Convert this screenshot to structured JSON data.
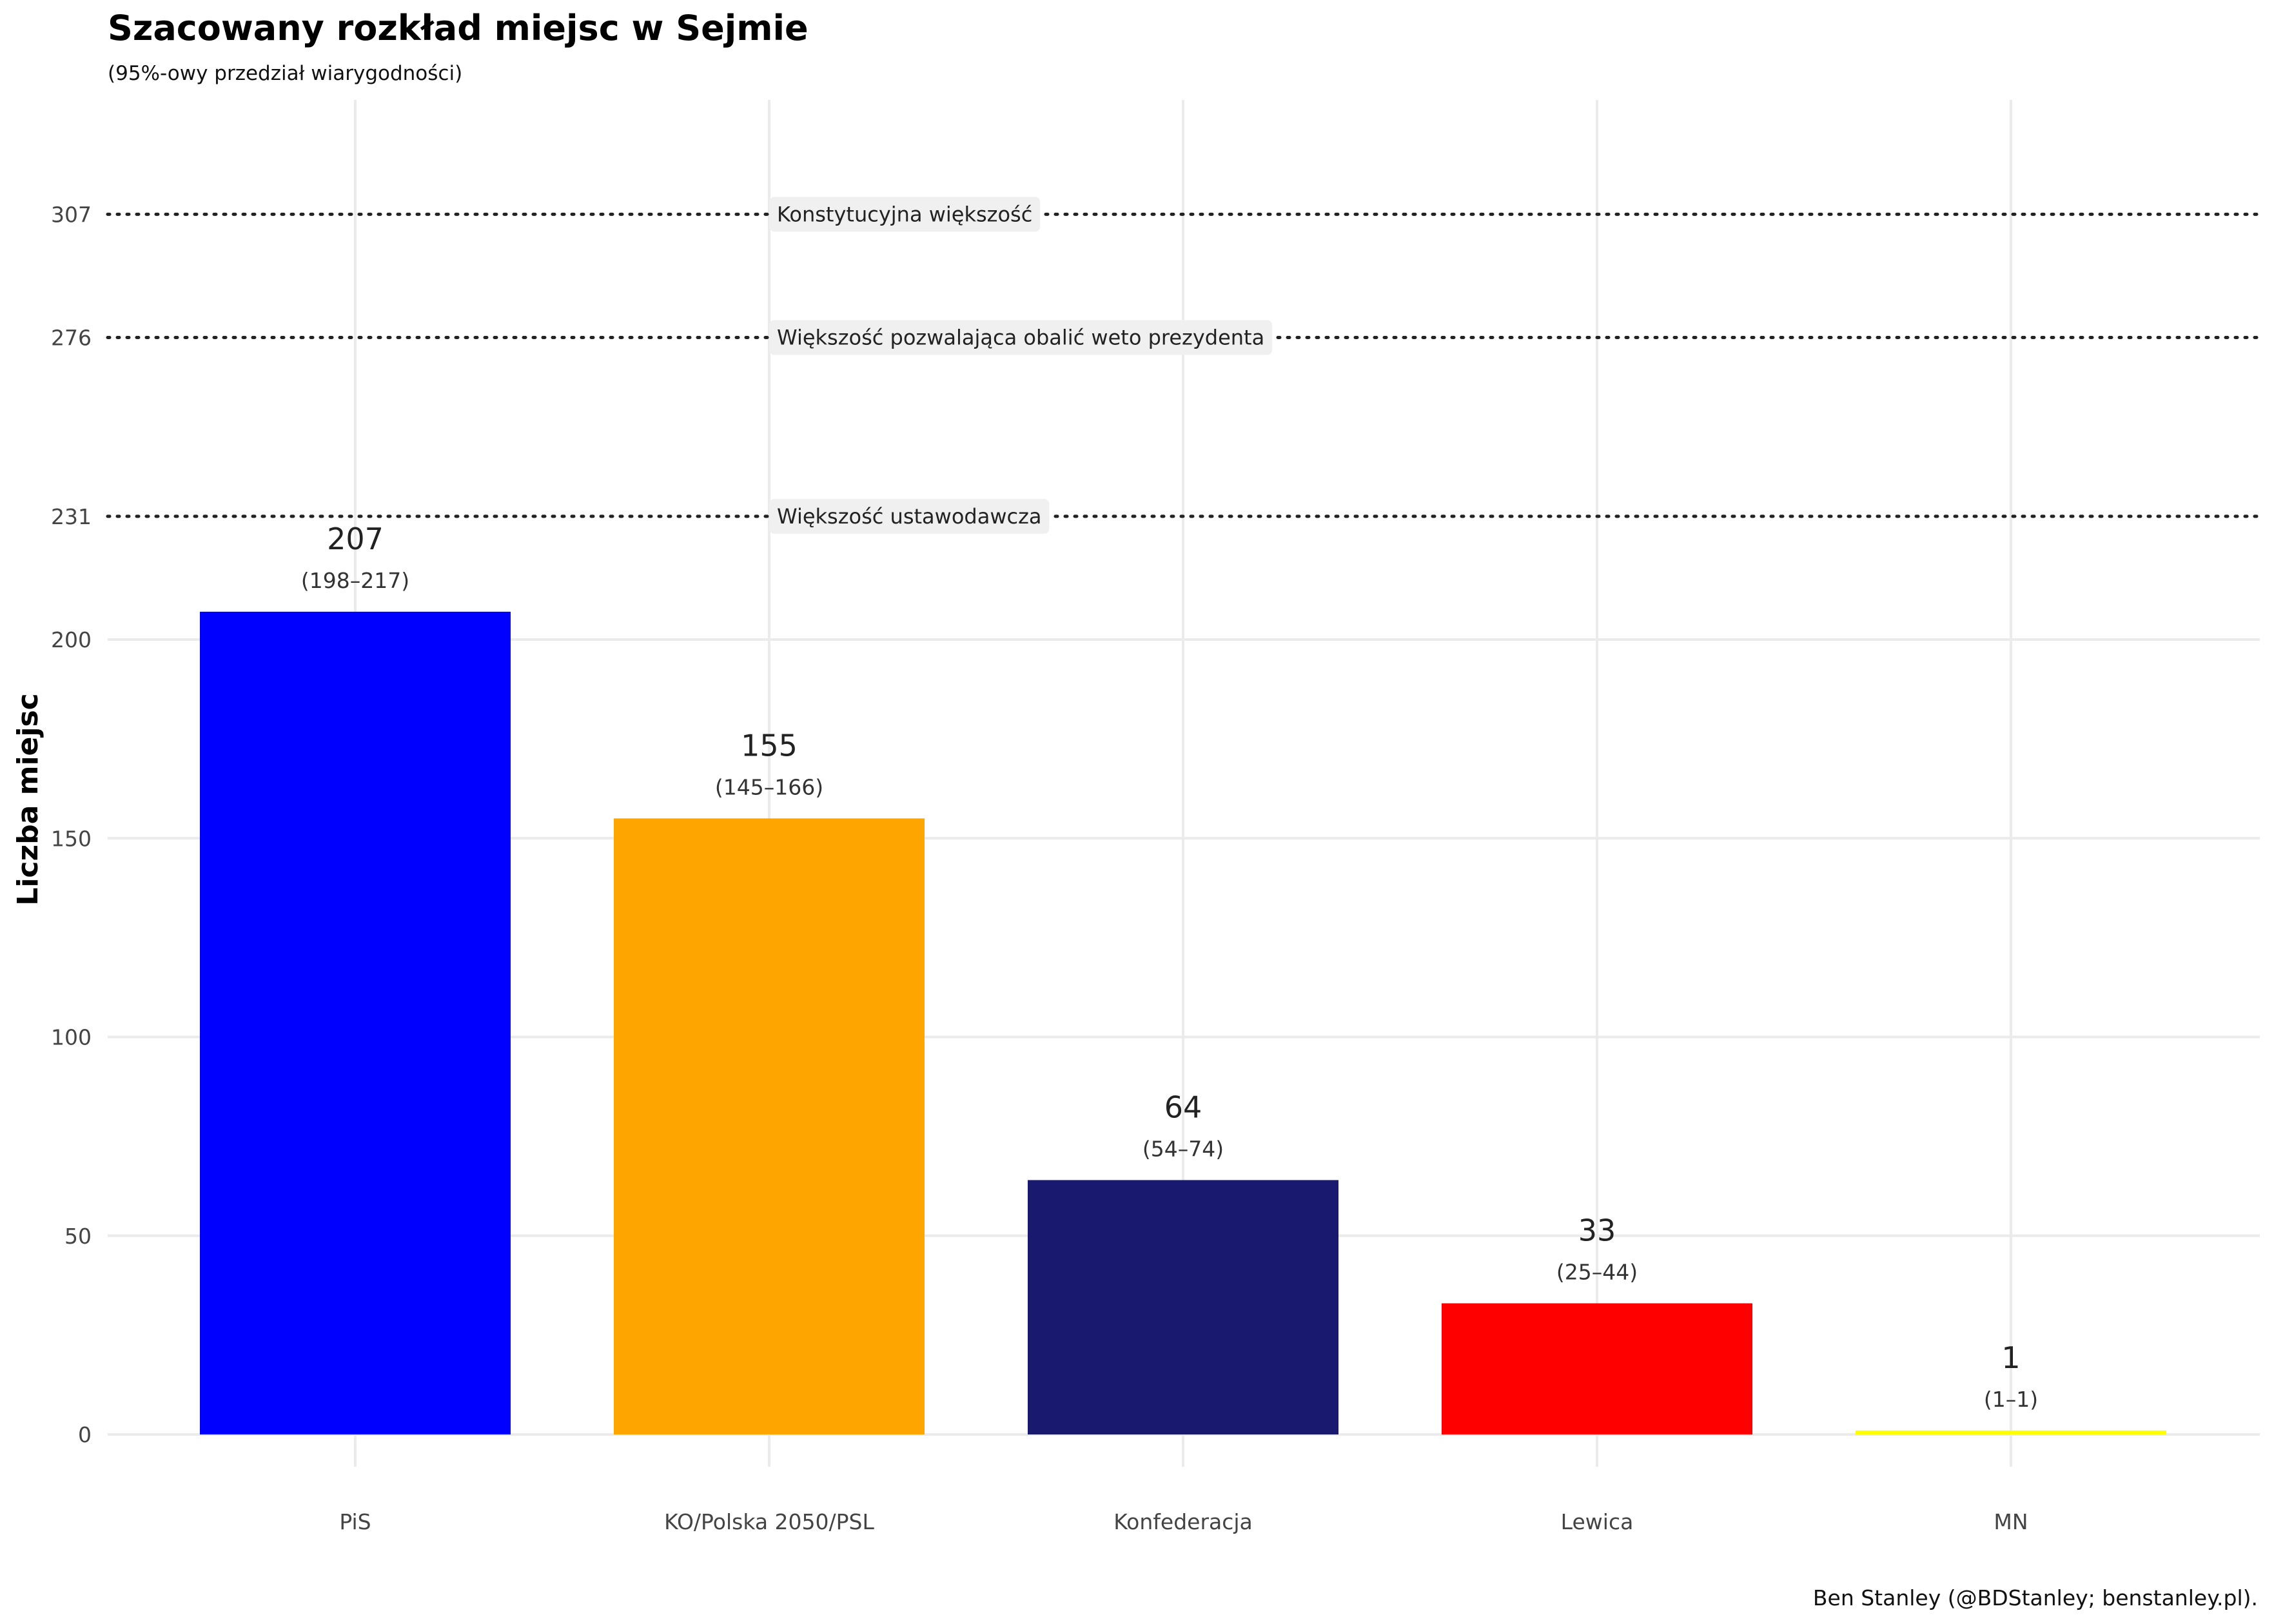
{
  "chart_data": {
    "type": "bar",
    "title": "Szacowany rozkład miejsc w Sejmie",
    "subtitle": "(95%-owy przedział wiarygodności)",
    "ylabel": "Liczba miejsc",
    "xlabel": "",
    "caption": "Ben Stanley (@BDStanley; benstanley.pl).",
    "ylim": [
      0,
      330
    ],
    "grid": true,
    "yticks": [
      0,
      50,
      100,
      150,
      200,
      231,
      276,
      307
    ],
    "categories": [
      "PiS",
      "KO/Polska 2050/PSL",
      "Konfederacja",
      "Lewica",
      "MN"
    ],
    "values": [
      207,
      155,
      64,
      33,
      1
    ],
    "intervals": [
      "(198–217)",
      "(145–166)",
      "(54–74)",
      "(25–44)",
      "(1–1)"
    ],
    "colors": [
      "#0000ff",
      "#ffa500",
      "#191970",
      "#ff0000",
      "#ffff00"
    ],
    "reference_lines": [
      {
        "value": 307,
        "label": "Konstytucyjna większość"
      },
      {
        "value": 276,
        "label": "Większość pozwalająca obalić weto prezydenta"
      },
      {
        "value": 231,
        "label": "Większość ustawodawcza"
      }
    ]
  }
}
